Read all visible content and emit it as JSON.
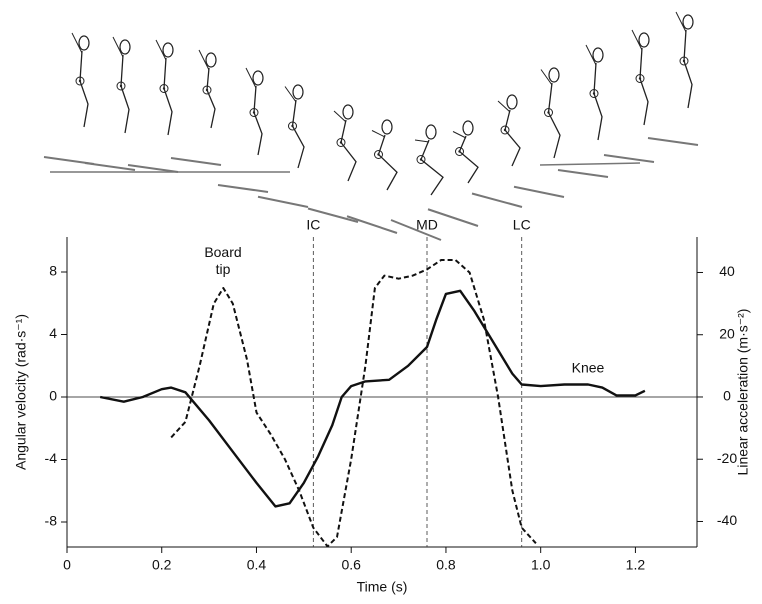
{
  "chart_data": {
    "type": "line",
    "x_label": "Time (s)",
    "y_label": "Angular velocity (rad·s⁻¹)",
    "y2_label": "Linear acceleration (m·s⁻²)",
    "xlim": [
      0,
      1.33
    ],
    "xticks": [
      0,
      0.2,
      0.4,
      0.6,
      0.8,
      {
        "value": 1,
        "label": "1.0"
      },
      1.2
    ],
    "ylim": [
      -9.6,
      10.24
    ],
    "yticks": [
      -8,
      -4,
      0,
      4,
      8
    ],
    "y2lim": [
      -48.2,
      51.4
    ],
    "y2ticks": [
      -40,
      -20,
      0,
      20,
      40
    ],
    "markers": [
      {
        "label": "IC",
        "x": 0.52
      },
      {
        "label": "MD",
        "x": 0.76
      },
      {
        "label": "LC",
        "x": 0.96
      }
    ],
    "series": [
      {
        "name": "Knee",
        "color": "#111111",
        "style": "solid",
        "x": [
          0.07,
          0.12,
          0.16,
          0.2,
          0.22,
          0.25,
          0.3,
          0.35,
          0.4,
          0.44,
          0.47,
          0.5,
          0.53,
          0.56,
          0.58,
          0.6,
          0.63,
          0.68,
          0.72,
          0.76,
          0.78,
          0.8,
          0.83,
          0.86,
          0.9,
          0.94,
          0.96,
          1.0,
          1.05,
          1.1,
          1.13,
          1.16,
          1.2,
          1.22
        ],
        "values": [
          0,
          -0.3,
          0,
          0.5,
          0.6,
          0.3,
          -1.5,
          -3.5,
          -5.5,
          -7,
          -6.8,
          -5.5,
          -3.8,
          -1.8,
          0,
          0.7,
          1,
          1.1,
          2,
          3.2,
          5,
          6.6,
          6.8,
          5.5,
          3.5,
          1.5,
          0.8,
          0.7,
          0.8,
          0.8,
          0.6,
          0.1,
          0.1,
          0.4
        ]
      },
      {
        "name": "Board tip",
        "color": "#111111",
        "style": "dashed",
        "axis": "y2",
        "x": [
          0.22,
          0.25,
          0.28,
          0.31,
          0.33,
          0.35,
          0.38,
          0.4,
          0.43,
          0.46,
          0.49,
          0.52,
          0.55,
          0.57,
          0.6,
          0.63,
          0.65,
          0.67,
          0.7,
          0.73,
          0.76,
          0.79,
          0.82,
          0.85,
          0.88,
          0.91,
          0.94,
          0.96,
          0.99
        ],
        "values": [
          -13,
          -8,
          10,
          30,
          35,
          30,
          12,
          -5,
          -12,
          -20,
          -30,
          -42,
          -48,
          -45,
          -20,
          10,
          35,
          39,
          38,
          39,
          41,
          44,
          44,
          40,
          25,
          0,
          -30,
          -42,
          -47
        ]
      }
    ]
  }
}
